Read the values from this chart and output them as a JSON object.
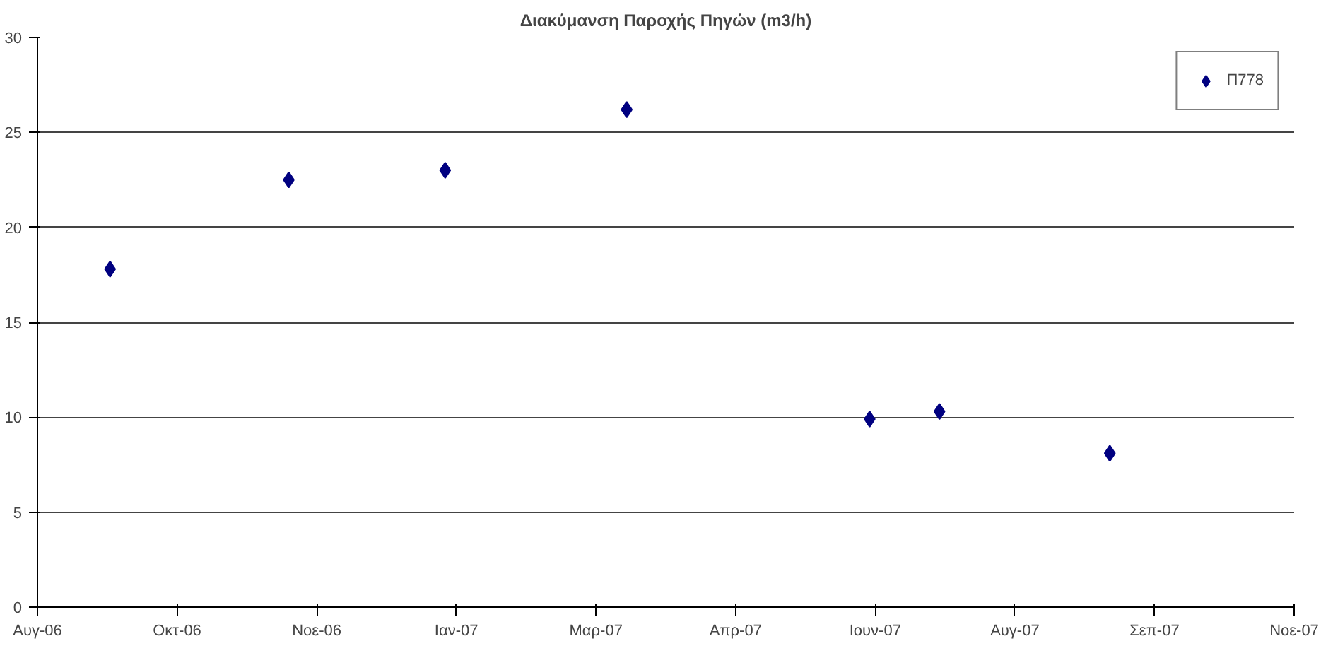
{
  "chart_data": {
    "type": "scatter",
    "title": "Διακύμανση Παροχής Πηγών (m3/h)",
    "x": [
      "2006-09-15",
      "2006-11-18",
      "2007-01-13",
      "2007-03-19",
      "2007-06-14",
      "2007-07-09",
      "2007-09-08"
    ],
    "series": [
      {
        "name": "Π778",
        "color": "#000080",
        "values": [
          17.8,
          22.5,
          23.0,
          26.2,
          9.9,
          10.3,
          8.1
        ]
      }
    ],
    "xlim": [
      "2006-08-20",
      "2007-11-13"
    ],
    "xticks": [
      {
        "value": "2006-08-20",
        "label": "Αυγ-06"
      },
      {
        "value": "2006-10-09",
        "label": "Οκτ-06"
      },
      {
        "value": "2006-11-28",
        "label": "Νοε-06"
      },
      {
        "value": "2007-01-17",
        "label": "Ιαν-07"
      },
      {
        "value": "2007-03-08",
        "label": "Μαρ-07"
      },
      {
        "value": "2007-04-27",
        "label": "Απρ-07"
      },
      {
        "value": "2007-06-16",
        "label": "Ιουν-07"
      },
      {
        "value": "2007-08-05",
        "label": "Αυγ-07"
      },
      {
        "value": "2007-09-24",
        "label": "Σεπ-07"
      },
      {
        "value": "2007-11-13",
        "label": "Νοε-07"
      }
    ],
    "ylim": [
      0,
      30
    ],
    "yticks": [
      0,
      5,
      10,
      15,
      20,
      25,
      30
    ],
    "grid": "y",
    "legend": "top right",
    "marker": "diamond"
  }
}
